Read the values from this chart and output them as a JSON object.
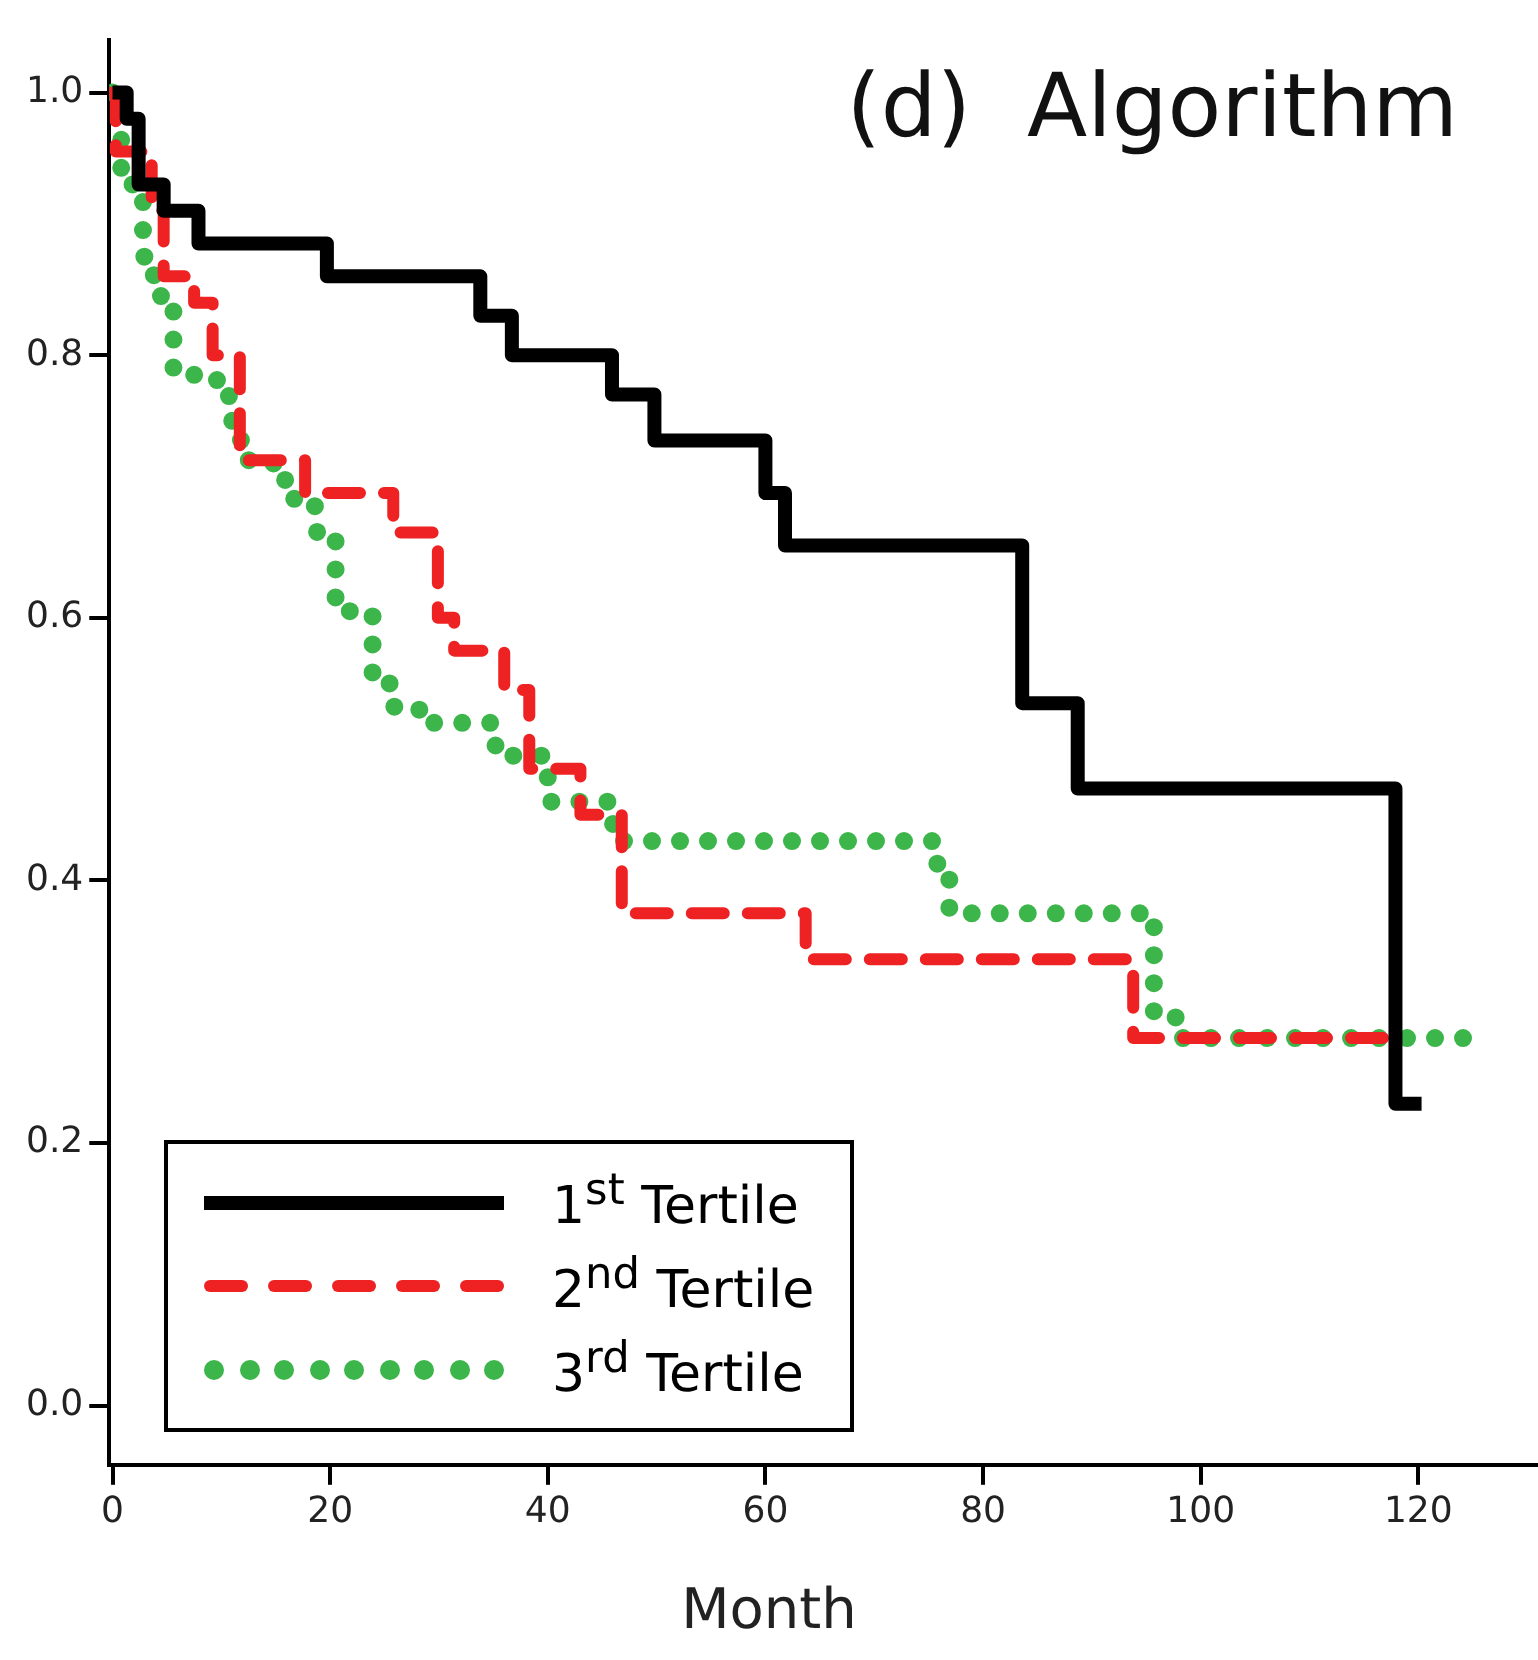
{
  "chart_data": {
    "type": "step",
    "annotations": [
      "(d)  Algorithm"
    ],
    "xlabel": "Month",
    "xlim": [
      -0.3,
      131
    ],
    "xticks": [
      0,
      20,
      40,
      60,
      80,
      100,
      120
    ],
    "ylim": [
      -0.045,
      1.04
    ],
    "yticks": [
      {
        "value": 0,
        "label": "0.0"
      },
      0.2,
      0.4,
      0.6,
      0.8,
      {
        "value": 1,
        "label": "1.0"
      }
    ],
    "grid": false,
    "legend": "bottom left",
    "series": [
      {
        "name": "1$^{st}$ Tertile",
        "color": "#000000",
        "line_style": "solid",
        "x": [
          0,
          1.3,
          2.4,
          4.7,
          7.9,
          19.7,
          33.8,
          36.7,
          45.9,
          49.8,
          60,
          61.8,
          83.6,
          88.7,
          117.9,
          120.3
        ],
        "values": [
          1,
          0.98,
          0.93,
          0.91,
          0.885,
          0.86,
          0.83,
          0.8,
          0.77,
          0.735,
          0.695,
          0.655,
          0.535,
          0.47,
          0.23,
          0.23
        ]
      },
      {
        "name": "2$^{nd}$ Tertile",
        "color": "#ee2222",
        "line_style": "dashed",
        "x": [
          0,
          0.3,
          3.6,
          4.7,
          7.5,
          9.2,
          11.7,
          17.7,
          25.8,
          29.9,
          31.4,
          36,
          38.3,
          43,
          46.8,
          63.7,
          93.8,
          118
        ],
        "values": [
          1,
          0.955,
          0.91,
          0.86,
          0.84,
          0.8,
          0.72,
          0.695,
          0.665,
          0.6,
          0.575,
          0.545,
          0.485,
          0.45,
          0.375,
          0.34,
          0.28,
          0.28
        ]
      },
      {
        "name": "3$^{rd}$ Tertile",
        "color": "#3cb54a",
        "line_style": "dotted",
        "x": [
          0,
          0.8,
          2.8,
          3.8,
          5.6,
          9.6,
          10.7,
          11.8,
          14.8,
          16.7,
          18.8,
          20.5,
          23.9,
          25.9,
          29.1,
          35.2,
          40,
          46,
          75.8,
          76.9,
          95.7,
          97.7,
          125.4
        ],
        "values": [
          1,
          0.93,
          0.875,
          0.845,
          0.785,
          0.775,
          0.75,
          0.72,
          0.705,
          0.685,
          0.665,
          0.605,
          0.55,
          0.53,
          0.52,
          0.495,
          0.46,
          0.43,
          0.405,
          0.375,
          0.3,
          0.28,
          0.28
        ]
      }
    ]
  }
}
